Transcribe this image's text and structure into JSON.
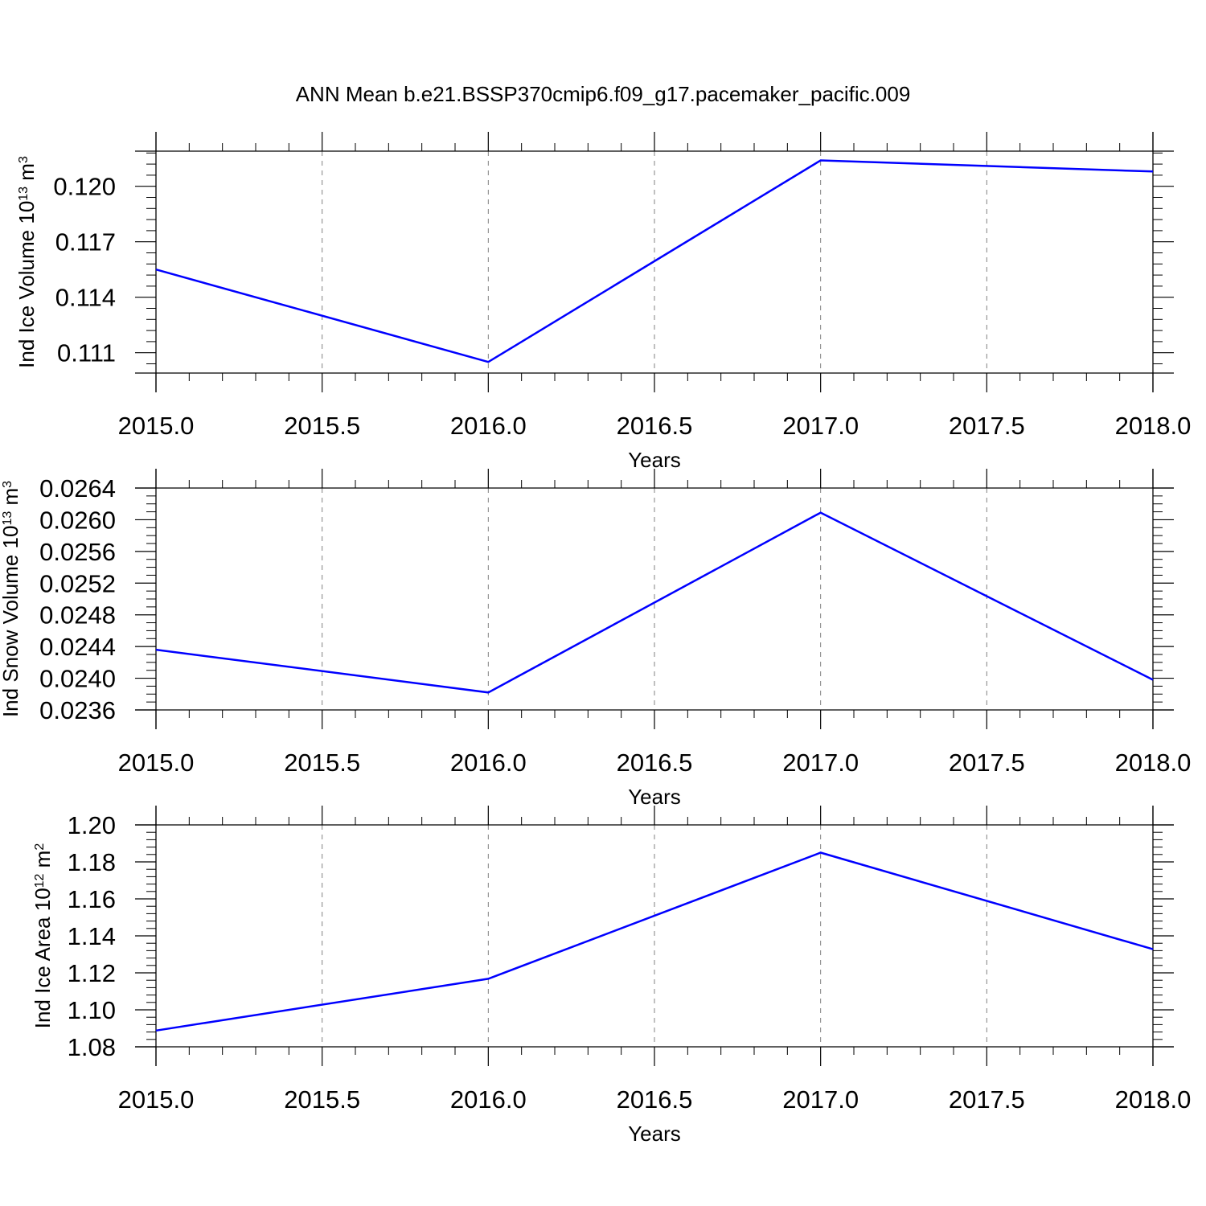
{
  "title": "ANN Mean b.e21.BSSP370cmip6.f09_g17.pacemaker_pacific.009",
  "colors": {
    "series": "#0000ff",
    "axis": "#000000",
    "grid": "#808080",
    "background": "#ffffff"
  },
  "chart_data": [
    {
      "type": "line",
      "xlabel": "Years",
      "ylabel": {
        "base": "Ind Ice Volume 10",
        "exp": "13",
        "unit": " m",
        "unit_exp": "3"
      },
      "xlim": [
        2015.0,
        2018.0
      ],
      "ylim": [
        0.1099,
        0.1219
      ],
      "xticks": [
        "2015.0",
        "2015.5",
        "2016.0",
        "2016.5",
        "2017.0",
        "2017.5",
        "2018.0"
      ],
      "xtick_values": [
        2015.0,
        2015.5,
        2016.0,
        2016.5,
        2017.0,
        2017.5,
        2018.0
      ],
      "yticks": [
        "0.111",
        "0.114",
        "0.117",
        "0.120"
      ],
      "ytick_values": [
        0.111,
        0.114,
        0.117,
        0.12
      ],
      "y_minor_step": 0.0006,
      "grid": "vertical dashed at major x ticks",
      "series": [
        {
          "x": [
            2015,
            2016,
            2017,
            2018
          ],
          "y": [
            0.1155,
            0.1105,
            0.1214,
            0.1208
          ]
        }
      ]
    },
    {
      "type": "line",
      "xlabel": "Years",
      "ylabel": {
        "base": "Ind Snow Volume 10",
        "exp": "13",
        "unit": " m",
        "unit_exp": "3"
      },
      "xlim": [
        2015.0,
        2018.0
      ],
      "ylim": [
        0.0236,
        0.0264
      ],
      "xticks": [
        "2015.0",
        "2015.5",
        "2016.0",
        "2016.5",
        "2017.0",
        "2017.5",
        "2018.0"
      ],
      "xtick_values": [
        2015.0,
        2015.5,
        2016.0,
        2016.5,
        2017.0,
        2017.5,
        2018.0
      ],
      "yticks": [
        "0.0236",
        "0.0240",
        "0.0244",
        "0.0248",
        "0.0252",
        "0.0256",
        "0.0260",
        "0.0264"
      ],
      "ytick_values": [
        0.0236,
        0.024,
        0.0244,
        0.0248,
        0.0252,
        0.0256,
        0.026,
        0.0264
      ],
      "y_minor_step": 0.0001,
      "grid": "vertical dashed at major x ticks",
      "series": [
        {
          "x": [
            2015,
            2016,
            2017,
            2018
          ],
          "y": [
            0.02436,
            0.02382,
            0.02609,
            0.02398
          ]
        }
      ]
    },
    {
      "type": "line",
      "xlabel": "Years",
      "ylabel": {
        "base": "Ind Ice Area 10",
        "exp": "12",
        "unit": " m",
        "unit_exp": "2"
      },
      "xlim": [
        2015.0,
        2018.0
      ],
      "ylim": [
        1.08,
        1.2
      ],
      "xticks": [
        "2015.0",
        "2015.5",
        "2016.0",
        "2016.5",
        "2017.0",
        "2017.5",
        "2018.0"
      ],
      "xtick_values": [
        2015.0,
        2015.5,
        2016.0,
        2016.5,
        2017.0,
        2017.5,
        2018.0
      ],
      "yticks": [
        "1.08",
        "1.10",
        "1.12",
        "1.14",
        "1.16",
        "1.18",
        "1.20"
      ],
      "ytick_values": [
        1.08,
        1.1,
        1.12,
        1.14,
        1.16,
        1.18,
        1.2
      ],
      "y_minor_step": 0.004,
      "grid": "vertical dashed at major x ticks",
      "series": [
        {
          "x": [
            2015,
            2016,
            2017,
            2018
          ],
          "y": [
            1.0888,
            1.1168,
            1.185,
            1.1328
          ]
        }
      ]
    }
  ]
}
